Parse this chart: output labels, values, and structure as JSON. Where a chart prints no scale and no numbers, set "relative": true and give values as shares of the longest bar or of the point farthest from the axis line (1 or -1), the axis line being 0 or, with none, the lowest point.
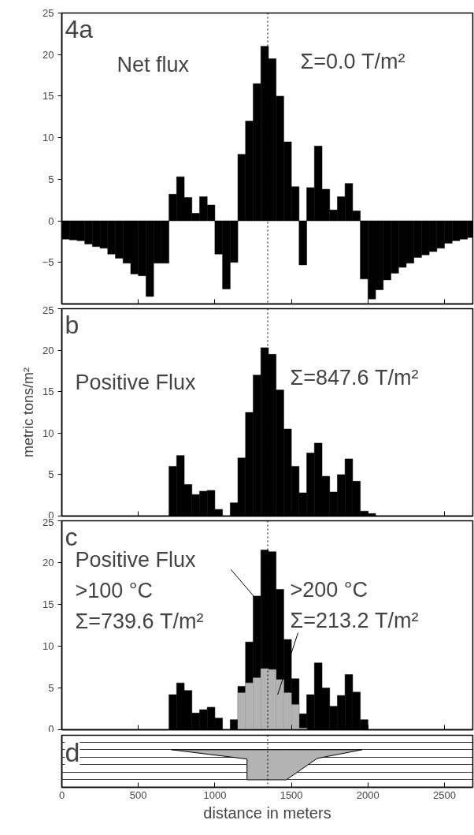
{
  "chart_data": [
    {
      "type": "histogram",
      "title": "4a",
      "annotations": [
        "Net flux",
        "Σ=0.0 T/m²"
      ],
      "bins": [
        0,
        50,
        100,
        150,
        200,
        250,
        300,
        350,
        400,
        450,
        500,
        550,
        600,
        650,
        700,
        750,
        800,
        850,
        900,
        950,
        1000,
        1050,
        1100,
        1150,
        1200,
        1250,
        1300,
        1350,
        1400,
        1450,
        1500,
        1550,
        1600,
        1650,
        1700,
        1750,
        1800,
        1850,
        1900,
        1950,
        2000,
        2050,
        2100,
        2150,
        2200,
        2250,
        2300,
        2350,
        2400,
        2450,
        2500,
        2550,
        2600,
        2650,
        2685
      ],
      "series": [
        {
          "color": "#000000",
          "values": [
            -2.2,
            -2.3,
            -2.4,
            -2.8,
            -3.1,
            -3.3,
            -4.0,
            -4.5,
            -5.1,
            -6.4,
            -6.6,
            -9.1,
            -5.1,
            -5.1,
            3.2,
            5.3,
            2.8,
            0.9,
            2.9,
            1.9,
            -4.0,
            -8.2,
            -5.0,
            8.0,
            12.0,
            16.5,
            21.0,
            19.5,
            15.0,
            9.5,
            4.1,
            -5.3,
            4.0,
            9.0,
            3.8,
            1.3,
            2.9,
            4.5,
            1.2,
            -7.0,
            -9.4,
            -8.3,
            -7.1,
            -6.3,
            -5.6,
            -5.1,
            -4.4,
            -4.1,
            -3.7,
            -3.3,
            -2.7,
            -2.4,
            -2.2,
            -2.0
          ]
        }
      ],
      "xlim": [
        0,
        2685
      ],
      "xticks": [
        0,
        500,
        1000,
        1500,
        2000,
        2500
      ],
      "ylim": [
        -10,
        25
      ],
      "yticks": [
        -5,
        0,
        5,
        10,
        15,
        20,
        25
      ],
      "tick_labels": "y",
      "grid": false,
      "ref_lines": [
        {
          "axis": "x",
          "value": 1345,
          "line_style": "dotted"
        }
      ]
    },
    {
      "type": "histogram",
      "title": "b",
      "ylabel": "metric tons/m²",
      "annotations": [
        "Positive Flux",
        "Σ=847.6 T/m²"
      ],
      "bins": [
        0,
        50,
        100,
        150,
        200,
        250,
        300,
        350,
        400,
        450,
        500,
        550,
        600,
        650,
        700,
        750,
        800,
        850,
        900,
        950,
        1000,
        1050,
        1100,
        1150,
        1200,
        1250,
        1300,
        1350,
        1400,
        1450,
        1500,
        1550,
        1600,
        1650,
        1700,
        1750,
        1800,
        1850,
        1900,
        1950,
        2000,
        2050,
        2100,
        2150,
        2200,
        2250,
        2300,
        2350,
        2400,
        2450,
        2500,
        2550,
        2600,
        2650,
        2685
      ],
      "series": [
        {
          "color": "#000000",
          "values": [
            0,
            0,
            0,
            0,
            0,
            0,
            0,
            0,
            0,
            0,
            0,
            0,
            0,
            0,
            6,
            7.3,
            3.8,
            2.6,
            3,
            3.1,
            0.8,
            0,
            1.6,
            7,
            12.5,
            17,
            20.3,
            19.5,
            15.2,
            10.5,
            6,
            2.8,
            7.6,
            8.8,
            4.8,
            2.9,
            5,
            6.9,
            4.2,
            0.6,
            0.3,
            0,
            0,
            0,
            0,
            0,
            0,
            0,
            0,
            0,
            0,
            0,
            0,
            0
          ]
        }
      ],
      "xlim": [
        0,
        2685
      ],
      "xticks": [
        0,
        500,
        1000,
        1500,
        2000,
        2500
      ],
      "ylim": [
        0,
        25
      ],
      "yticks": [
        0,
        5,
        10,
        15,
        20,
        25
      ],
      "tick_labels": "y",
      "grid": false,
      "ref_lines": [
        {
          "axis": "x",
          "value": 1345,
          "line_style": "dotted"
        }
      ]
    },
    {
      "type": "histogram",
      "title": "c",
      "annotations": [
        {
          "text": "Positive Flux\n>100 °C\nΣ=739.6 T/m²",
          "x": 1290,
          "y": 15.2
        },
        {
          "text": ">200 °C\nΣ=213.2 T/m²",
          "x": 1410,
          "y": 4.2
        }
      ],
      "bins": [
        0,
        50,
        100,
        150,
        200,
        250,
        300,
        350,
        400,
        450,
        500,
        550,
        600,
        650,
        700,
        750,
        800,
        850,
        900,
        950,
        1000,
        1050,
        1100,
        1150,
        1200,
        1250,
        1300,
        1350,
        1400,
        1450,
        1500,
        1550,
        1600,
        1650,
        1700,
        1750,
        1800,
        1850,
        1900,
        1950,
        2000,
        2050,
        2100,
        2150,
        2200,
        2250,
        2300,
        2350,
        2400,
        2450,
        2500,
        2550,
        2600,
        2650,
        2685
      ],
      "series": [
        {
          "color": "#000000",
          "values": [
            0,
            0,
            0,
            0,
            0,
            0,
            0,
            0,
            0,
            0,
            0,
            0,
            0,
            0,
            4.2,
            5.6,
            4.7,
            2.0,
            2.4,
            2.7,
            1.4,
            0,
            1.2,
            5.2,
            10.5,
            16,
            21.5,
            21.3,
            16.8,
            10.8,
            6.1,
            1.9,
            4.2,
            8.0,
            5.0,
            2.8,
            4.1,
            6.6,
            4.5,
            1.2,
            0,
            0,
            0,
            0,
            0,
            0,
            0,
            0,
            0,
            0,
            0,
            0,
            0,
            0
          ]
        },
        {
          "color": "#b3b3b3",
          "values": [
            0,
            0,
            0,
            0,
            0,
            0,
            0,
            0,
            0,
            0,
            0,
            0,
            0,
            0,
            0,
            0,
            0,
            0,
            0,
            0,
            0,
            0,
            0,
            4.4,
            5.6,
            6.2,
            7.3,
            7.2,
            6.0,
            4.4,
            3.0,
            0.2,
            0,
            0,
            0,
            0,
            0,
            0,
            0,
            0,
            0,
            0,
            0,
            0,
            0,
            0,
            0,
            0,
            0,
            0,
            0,
            0,
            0,
            0
          ]
        }
      ],
      "xlim": [
        0,
        2685
      ],
      "xticks": [
        0,
        500,
        1000,
        1500,
        2000,
        2500
      ],
      "ylim": [
        0,
        25
      ],
      "yticks": [
        0,
        5,
        10,
        15,
        20,
        25
      ],
      "tick_labels": "y",
      "grid": false,
      "ref_lines": [
        {
          "axis": "x",
          "value": 1345,
          "line_style": "dotted"
        }
      ]
    },
    {
      "type": "area",
      "title": "d",
      "xlabel": "distance in meters",
      "relative": true,
      "x": [
        715,
        1210,
        1210,
        1467,
        1668,
        1963
      ],
      "series": [
        {
          "color": "#b3b3b3",
          "values": [
            0,
            -0.31,
            -1,
            -1,
            -0.29,
            0
          ]
        }
      ],
      "xlim": [
        0,
        2685
      ],
      "xticks": [
        0,
        500,
        1000,
        1500,
        2000,
        2500
      ],
      "tick_labels": "x",
      "grid": "y",
      "ref_lines": [
        {
          "axis": "x",
          "value": 1345,
          "line_style": "dotted"
        }
      ]
    }
  ]
}
